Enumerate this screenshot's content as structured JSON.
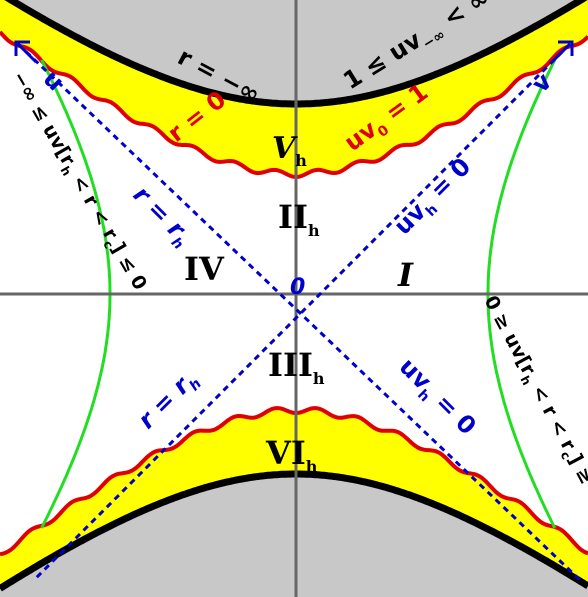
{
  "diagram": {
    "colors": {
      "singularity_fill": "#c8c8c8",
      "singularity_line": "#000000",
      "band_fill": "#ffff00",
      "wavy_line": "#e00000",
      "green_curve": "#22dd22",
      "null_lines": "#0000cc",
      "axes": "#666666",
      "region_text": "#000000",
      "null_text": "#0000cc"
    },
    "regions": {
      "I": "I",
      "II": "II",
      "II_sub": "h",
      "III": "III",
      "III_sub": "h",
      "IV": "IV",
      "V": "V",
      "V_sub": "h",
      "VI": "VI",
      "VI_sub": "h"
    },
    "labels": {
      "origin": "0",
      "u_axis": "u",
      "v_axis": "v",
      "r_minus_inf": "r = −∞",
      "uv_range_top": "1 ≤ uv",
      "uv_range_top_sub": "−∞",
      "uv_range_top_end": " < ∞",
      "r_zero": "r = 0",
      "uv0_main": "uv",
      "uv0_sub": "0",
      "uv0_end": " = 1",
      "r_rh_upper_main": "r = r",
      "r_rh_upper_sub": "h",
      "uvh_upper_main": "uv",
      "uvh_upper_sub": "h",
      "uvh_upper_end": " = 0",
      "r_rh_lower_main": "r = r",
      "r_rh_lower_sub": "h",
      "uvh_lower_main": "uv",
      "uvh_lower_sub": "h",
      "uvh_lower_end": " = 0",
      "left_curve_a": "−∞ ≤ uv[r",
      "left_curve_b": "h",
      "left_curve_c": " < r < r",
      "left_curve_d": "c",
      "left_curve_e": "] ≤ 0",
      "right_curve_a": "0 ≥ uv[r",
      "right_curve_b": "h",
      "right_curve_c": " < r < r",
      "right_curve_d": "c",
      "right_curve_e": "] ≥ −∞"
    }
  }
}
